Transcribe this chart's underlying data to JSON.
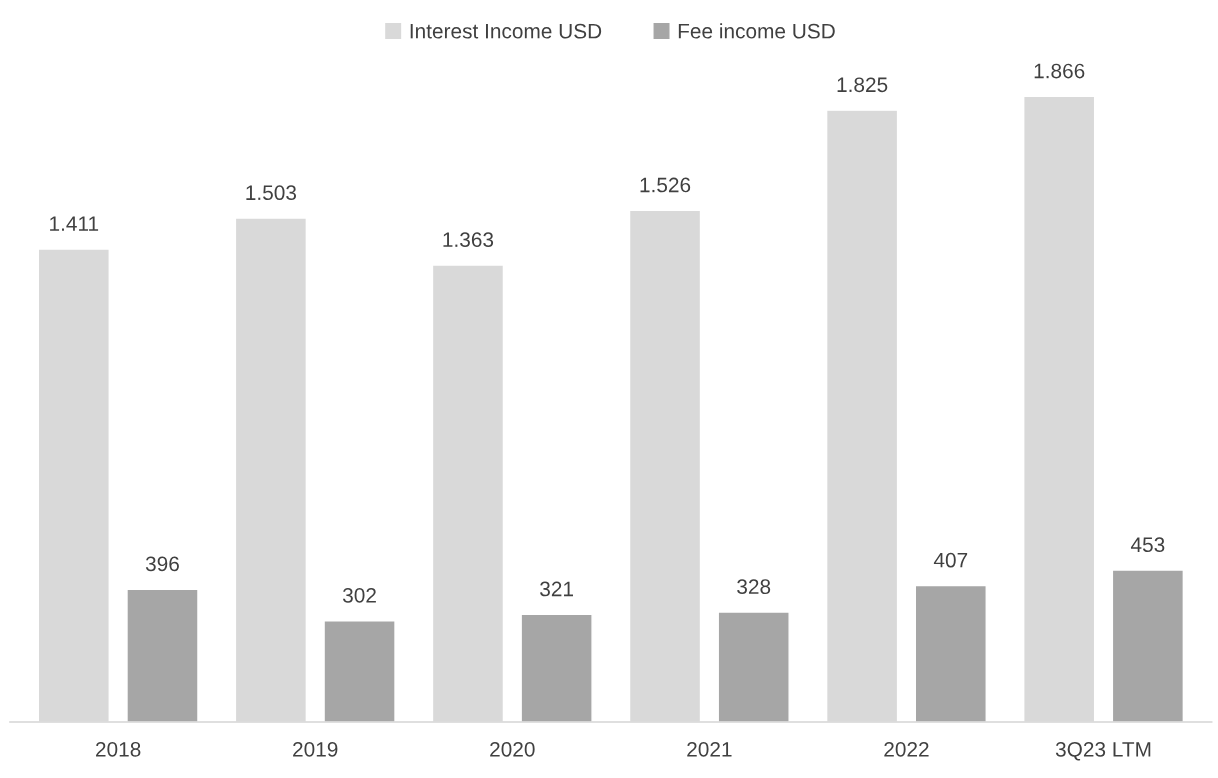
{
  "chart_data": {
    "type": "bar",
    "categories": [
      "2018",
      "2019",
      "2020",
      "2021",
      "2022",
      "3Q23 LTM"
    ],
    "series": [
      {
        "name": "Interest Income USD",
        "color": "#d9d9d9",
        "values": [
          1411,
          1503,
          1363,
          1526,
          1825,
          1866
        ],
        "value_labels": [
          "1.411",
          "1.503",
          "1.363",
          "1.526",
          "1.825",
          "1.866"
        ]
      },
      {
        "name": "Fee income USD",
        "color": "#a6a6a6",
        "values": [
          396,
          302,
          321,
          328,
          407,
          453
        ],
        "value_labels": [
          "396",
          "302",
          "321",
          "328",
          "407",
          "453"
        ]
      }
    ],
    "legend": "top",
    "grid": false
  }
}
